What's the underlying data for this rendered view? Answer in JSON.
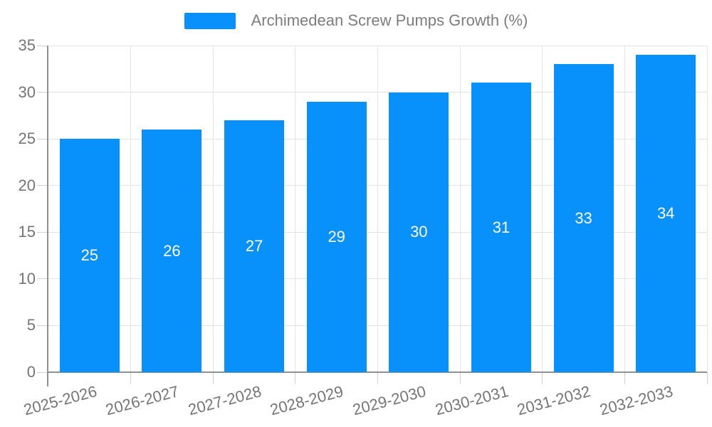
{
  "chart_data": {
    "type": "bar",
    "legend_label": "Archimedean Screw Pumps Growth (%)",
    "categories": [
      "2025-2026",
      "2026-2027",
      "2027-2028",
      "2028-2029",
      "2029-2030",
      "2030-2031",
      "2031-2032",
      "2032-2033"
    ],
    "values": [
      25,
      26,
      27,
      29,
      30,
      31,
      33,
      34
    ],
    "title": "",
    "xlabel": "",
    "ylabel": "",
    "ylim": [
      0,
      35
    ],
    "yticks": [
      0,
      5,
      10,
      15,
      20,
      25,
      30,
      35
    ],
    "grid": true,
    "legend_position": "top-center",
    "value_label_position": "inside-center",
    "x_label_rotation_deg": -15,
    "colors": {
      "bar": "#0890fb",
      "bar_value_label": "#ffffff",
      "axis_line": "#909090",
      "grid_line": "#e3e3e3",
      "tick_line": "#cfcfcf",
      "tick_label": "#757575",
      "legend_text": "#7d7d7d",
      "background": "#ffffff"
    }
  }
}
